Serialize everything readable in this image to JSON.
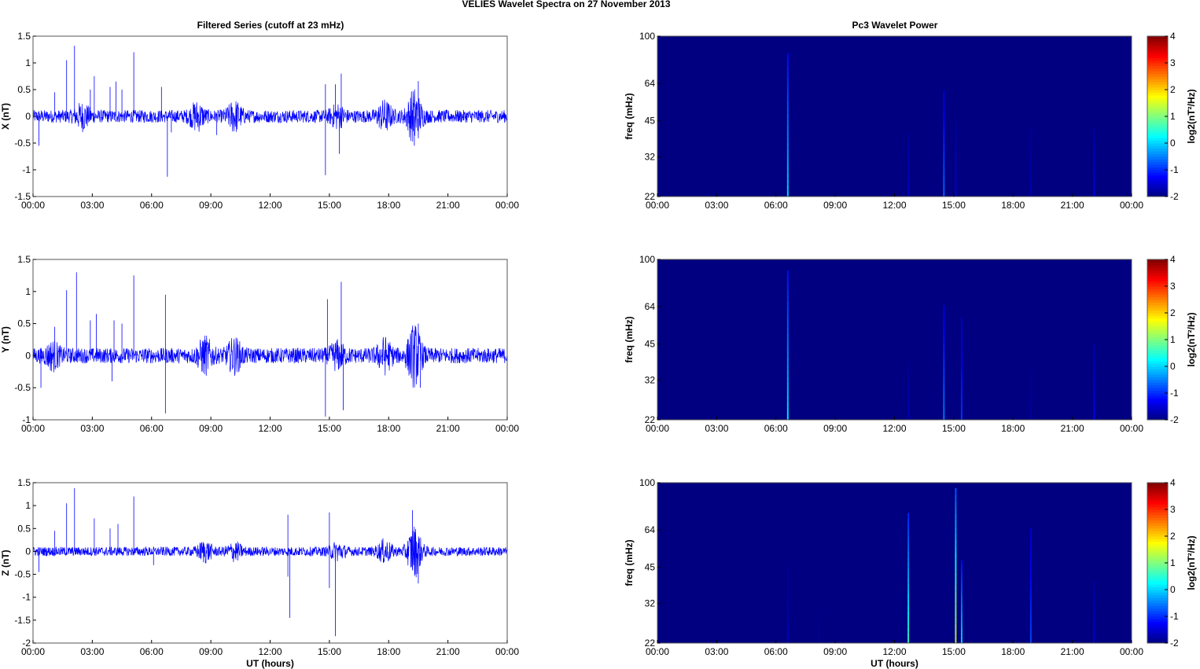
{
  "figure": {
    "suptitle": "VELIES Wavelet Spectra on 27 November  2013",
    "left_title": "Filtered Series (cutoff at 23 mHz)",
    "right_title": "Pc3 Wavelet Power",
    "xlabel": "UT (hours)"
  },
  "colors": {
    "series": "#0000ff",
    "spectrogram_background": "#00008f",
    "colormap": "jet"
  },
  "chart_data": [
    {
      "type": "line",
      "title": "Filtered Series (cutoff at 23 mHz)",
      "ylabel": "X (nT)",
      "xlabel": "",
      "x_range_hours": [
        0,
        24
      ],
      "x_ticks": [
        "00:00",
        "03:00",
        "06:00",
        "09:00",
        "12:00",
        "15:00",
        "18:00",
        "21:00",
        "00:00"
      ],
      "ylim": [
        -1.5,
        1.5
      ],
      "y_ticks": [
        "-1.5",
        "-1",
        "-0.5",
        "0",
        "0.5",
        "1",
        "1.5"
      ],
      "noise_amplitude": 0.12,
      "activity_bursts": [
        {
          "t": 2.5,
          "amp": 0.18
        },
        {
          "t": 8.3,
          "amp": 0.2
        },
        {
          "t": 10.2,
          "amp": 0.22
        },
        {
          "t": 15.4,
          "amp": 0.15
        },
        {
          "t": 17.8,
          "amp": 0.22
        },
        {
          "t": 19.3,
          "amp": 0.45
        }
      ],
      "spikes": [
        {
          "t": 0.3,
          "v": -0.55
        },
        {
          "t": 1.1,
          "v": 0.45
        },
        {
          "t": 1.7,
          "v": 1.05
        },
        {
          "t": 2.1,
          "v": 1.32
        },
        {
          "t": 2.9,
          "v": 0.5
        },
        {
          "t": 3.1,
          "v": 0.75
        },
        {
          "t": 3.9,
          "v": 0.55
        },
        {
          "t": 4.2,
          "v": 0.65
        },
        {
          "t": 4.5,
          "v": 0.5
        },
        {
          "t": 5.1,
          "v": 1.2
        },
        {
          "t": 6.5,
          "v": 0.55
        },
        {
          "t": 6.8,
          "v": -1.13
        },
        {
          "t": 7.0,
          "v": -0.3
        },
        {
          "t": 9.3,
          "v": -0.35
        },
        {
          "t": 14.8,
          "v": 0.6
        },
        {
          "t": 14.8,
          "v": -1.1
        },
        {
          "t": 15.3,
          "v": 0.6
        },
        {
          "t": 15.5,
          "v": -0.7
        },
        {
          "t": 15.6,
          "v": 0.8
        },
        {
          "t": 19.5,
          "v": 0.66
        },
        {
          "t": 19.3,
          "v": -0.55
        }
      ]
    },
    {
      "type": "heatmap",
      "title": "Pc3 Wavelet Power",
      "ylabel": "freq (mHz)",
      "xlabel": "",
      "x_range_hours": [
        0,
        24
      ],
      "x_ticks": [
        "00:00",
        "03:00",
        "06:00",
        "09:00",
        "12:00",
        "15:00",
        "18:00",
        "21:00",
        "00:00"
      ],
      "y_scale": "log",
      "ylim": [
        22,
        100
      ],
      "y_ticks": [
        "22",
        "32",
        "45",
        "64",
        "100"
      ],
      "colorbar": {
        "label": "log2(nT²/Hz)",
        "range": [
          -2,
          4
        ],
        "ticks": [
          "-2",
          "-1",
          "0",
          "1",
          "2",
          "3",
          "4"
        ]
      },
      "background_value": -2,
      "streaks": [
        {
          "t": 6.6,
          "f_top": 85,
          "peak": 0.1
        },
        {
          "t": 12.7,
          "f_top": 40,
          "peak": -1.6
        },
        {
          "t": 14.5,
          "f_top": 60,
          "peak": -0.6
        },
        {
          "t": 15.1,
          "f_top": 45,
          "peak": -1.5
        },
        {
          "t": 18.9,
          "f_top": 42,
          "peak": -1.7
        },
        {
          "t": 22.1,
          "f_top": 42,
          "peak": -1.4
        }
      ]
    },
    {
      "type": "line",
      "title": "",
      "ylabel": "Y (nT)",
      "xlabel": "",
      "x_range_hours": [
        0,
        24
      ],
      "x_ticks": [
        "00:00",
        "03:00",
        "06:00",
        "09:00",
        "12:00",
        "15:00",
        "18:00",
        "21:00",
        "00:00"
      ],
      "ylim": [
        -1,
        1.5
      ],
      "y_ticks": [
        "-1",
        "-0.5",
        "0",
        "0.5",
        "1",
        "1.5"
      ],
      "noise_amplitude": 0.12,
      "activity_bursts": [
        {
          "t": 1.0,
          "amp": 0.15
        },
        {
          "t": 8.7,
          "amp": 0.22
        },
        {
          "t": 10.2,
          "amp": 0.2
        },
        {
          "t": 15.4,
          "amp": 0.15
        },
        {
          "t": 17.8,
          "amp": 0.2
        },
        {
          "t": 19.3,
          "amp": 0.4
        }
      ],
      "spikes": [
        {
          "t": 0.4,
          "v": -0.5
        },
        {
          "t": 1.1,
          "v": 0.45
        },
        {
          "t": 1.7,
          "v": 1.02
        },
        {
          "t": 2.2,
          "v": 1.3
        },
        {
          "t": 2.9,
          "v": 0.55
        },
        {
          "t": 3.2,
          "v": 0.65
        },
        {
          "t": 4.1,
          "v": 0.55
        },
        {
          "t": 4.5,
          "v": 0.5
        },
        {
          "t": 5.1,
          "v": 1.25
        },
        {
          "t": 6.7,
          "v": 0.95
        },
        {
          "t": 6.7,
          "v": -0.9
        },
        {
          "t": 4.0,
          "v": -0.4
        },
        {
          "t": 14.9,
          "v": 0.88
        },
        {
          "t": 14.8,
          "v": -0.95
        },
        {
          "t": 15.6,
          "v": 1.15
        },
        {
          "t": 15.7,
          "v": -0.85
        },
        {
          "t": 19.5,
          "v": 0.5
        },
        {
          "t": 19.6,
          "v": -0.5
        }
      ]
    },
    {
      "type": "heatmap",
      "title": "",
      "ylabel": "freq (mHz)",
      "xlabel": "",
      "x_range_hours": [
        0,
        24
      ],
      "x_ticks": [
        "00:00",
        "03:00",
        "06:00",
        "09:00",
        "12:00",
        "15:00",
        "18:00",
        "21:00",
        "00:00"
      ],
      "y_scale": "log",
      "ylim": [
        22,
        100
      ],
      "y_ticks": [
        "22",
        "32",
        "45",
        "64",
        "100"
      ],
      "colorbar": {
        "label": "log2(nT²/Hz)",
        "range": [
          -2,
          4
        ],
        "ticks": [
          "-2",
          "-1",
          "0",
          "1",
          "2",
          "3",
          "4"
        ]
      },
      "background_value": -2,
      "streaks": [
        {
          "t": 6.6,
          "f_top": 90,
          "peak": 0.2
        },
        {
          "t": 12.7,
          "f_top": 38,
          "peak": -1.7
        },
        {
          "t": 14.5,
          "f_top": 65,
          "peak": -0.5
        },
        {
          "t": 15.4,
          "f_top": 58,
          "peak": -0.9
        },
        {
          "t": 18.9,
          "f_top": 35,
          "peak": -1.8
        },
        {
          "t": 22.1,
          "f_top": 45,
          "peak": -1.3
        }
      ]
    },
    {
      "type": "line",
      "title": "",
      "ylabel": "Z (nT)",
      "xlabel": "UT (hours)",
      "x_range_hours": [
        0,
        24
      ],
      "x_ticks": [
        "00:00",
        "03:00",
        "06:00",
        "09:00",
        "12:00",
        "15:00",
        "18:00",
        "21:00",
        "00:00"
      ],
      "ylim": [
        -2,
        1.5
      ],
      "y_ticks": [
        "-2",
        "-1.5",
        "-1",
        "-0.5",
        "0",
        "0.5",
        "1",
        "1.5"
      ],
      "noise_amplitude": 0.1,
      "activity_bursts": [
        {
          "t": 8.7,
          "amp": 0.18
        },
        {
          "t": 10.2,
          "amp": 0.15
        },
        {
          "t": 15.4,
          "amp": 0.15
        },
        {
          "t": 17.8,
          "amp": 0.2
        },
        {
          "t": 19.3,
          "amp": 0.5
        }
      ],
      "spikes": [
        {
          "t": 0.3,
          "v": -0.45
        },
        {
          "t": 1.1,
          "v": 0.45
        },
        {
          "t": 1.7,
          "v": 1.05
        },
        {
          "t": 2.1,
          "v": 1.38
        },
        {
          "t": 3.1,
          "v": 0.72
        },
        {
          "t": 3.9,
          "v": 0.5
        },
        {
          "t": 4.3,
          "v": 0.6
        },
        {
          "t": 5.1,
          "v": 1.2
        },
        {
          "t": 6.1,
          "v": -0.3
        },
        {
          "t": 12.9,
          "v": 0.8
        },
        {
          "t": 13.0,
          "v": -1.45
        },
        {
          "t": 12.9,
          "v": -0.55
        },
        {
          "t": 15.0,
          "v": 0.85
        },
        {
          "t": 15.3,
          "v": -1.85
        },
        {
          "t": 15.0,
          "v": -0.8
        },
        {
          "t": 19.2,
          "v": 0.9
        },
        {
          "t": 19.5,
          "v": -0.7
        }
      ]
    },
    {
      "type": "heatmap",
      "title": "",
      "ylabel": "freq (mHz)",
      "xlabel": "UT (hours)",
      "x_range_hours": [
        0,
        24
      ],
      "x_ticks": [
        "00:00",
        "03:00",
        "06:00",
        "09:00",
        "12:00",
        "15:00",
        "18:00",
        "21:00",
        "00:00"
      ],
      "y_scale": "log",
      "ylim": [
        22,
        100
      ],
      "y_ticks": [
        "22",
        "32",
        "45",
        "64",
        "100"
      ],
      "colorbar": {
        "label": "log2(nT²/Hz)",
        "range": [
          -2,
          4
        ],
        "ticks": [
          "-2",
          "-1",
          "0",
          "1",
          "2",
          "3",
          "4"
        ]
      },
      "background_value": -2,
      "streaks": [
        {
          "t": 6.6,
          "f_top": 45,
          "peak": -1.6
        },
        {
          "t": 8.2,
          "f_top": 30,
          "peak": -1.8
        },
        {
          "t": 12.7,
          "f_top": 75,
          "peak": 0.6
        },
        {
          "t": 15.1,
          "f_top": 95,
          "peak": 1.4
        },
        {
          "t": 15.4,
          "f_top": 48,
          "peak": 0.1
        },
        {
          "t": 18.9,
          "f_top": 65,
          "peak": -0.8
        },
        {
          "t": 22.1,
          "f_top": 40,
          "peak": -1.5
        }
      ]
    }
  ]
}
